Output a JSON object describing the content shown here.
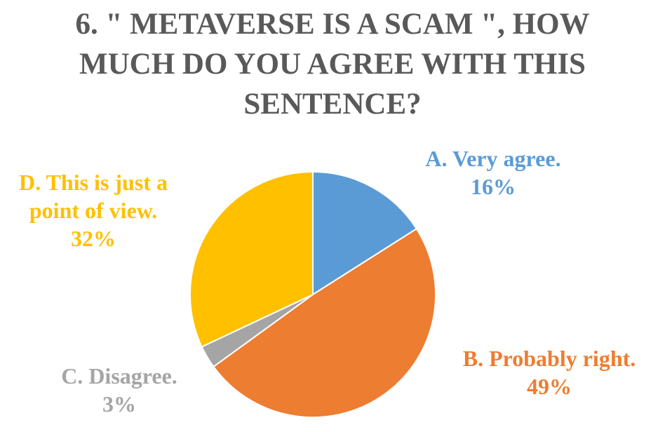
{
  "chart_data": {
    "type": "pie",
    "title_lines": [
      "6. \" METAVERSE IS A SCAM \", HOW",
      "MUCH DO YOU AGREE WITH THIS",
      "SENTENCE?"
    ],
    "slices": [
      {
        "label_lines": [
          "A. Very agree."
        ],
        "percent_label": "16%",
        "value": 16,
        "color": "#5B9BD5"
      },
      {
        "label_lines": [
          "B. Probably right."
        ],
        "percent_label": "49%",
        "value": 49,
        "color": "#ED7D31"
      },
      {
        "label_lines": [
          "C. Disagree."
        ],
        "percent_label": "3%",
        "value": 3,
        "color": "#A5A5A5"
      },
      {
        "label_lines": [
          "D. This is just a",
          "point of view."
        ],
        "percent_label": "32%",
        "value": 32,
        "color": "#FFC000"
      }
    ],
    "start_angle": "12 o'clock",
    "direction": "clockwise",
    "legend": "none",
    "label_placement": "outside-end"
  }
}
